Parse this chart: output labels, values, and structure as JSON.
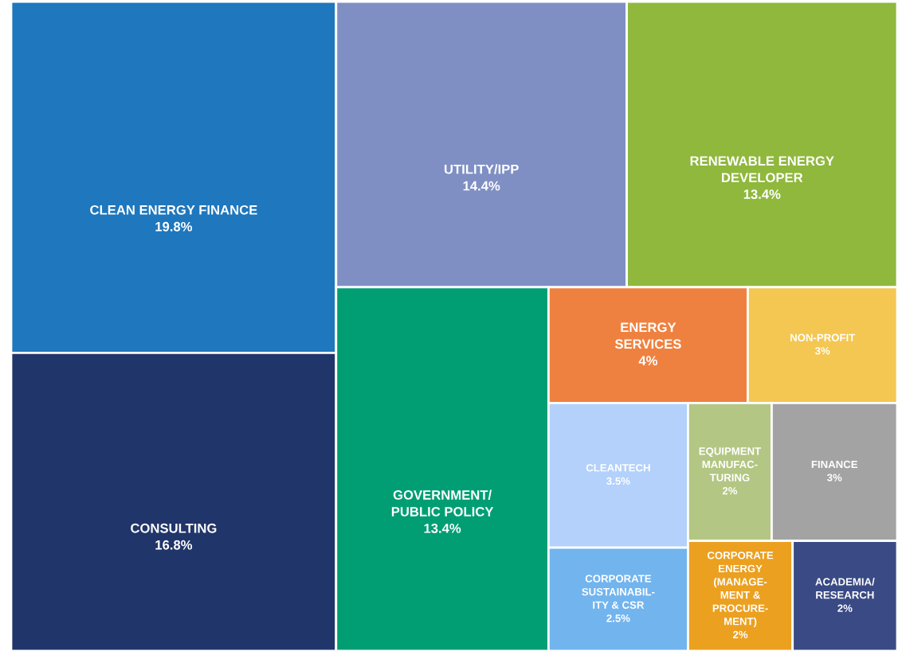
{
  "chart_data": {
    "type": "other",
    "categories": [
      "CLEAN ENERGY FINANCE",
      "CONSULTING",
      "UTILITY/IPP",
      "RENEWABLE ENERGY\nDEVELOPER",
      "GOVERNMENT/\nPUBLIC POLICY",
      "ENERGY\nSERVICES",
      "NON-PROFIT",
      "CLEANTECH",
      "CORPORATE\nSUSTAINABIL-\nITY & CSR",
      "EQUIPMENT\nMANUFAC-\nTURING",
      "FINANCE",
      "CORPORATE\nENERGY\n(MANAGE-\nMENT &\nPROCURE-\nMENT)",
      "ACADEMIA/\nRESEARCH"
    ],
    "values": [
      19.8,
      16.8,
      14.4,
      13.4,
      13.4,
      4,
      3,
      3.5,
      2.5,
      2,
      3,
      2,
      2
    ],
    "value_labels": [
      "19.8%",
      "16.8%",
      "14.4%",
      "13.4%",
      "13.4%",
      "4%",
      "3%",
      "3.5%",
      "2.5%",
      "2%",
      "3%",
      "2%",
      "2%"
    ],
    "colors": [
      "#1f77bd",
      "#203569",
      "#7f8fc4",
      "#8fb83d",
      "#019e74",
      "#ef8140",
      "#f4c752",
      "#b3d1fb",
      "#72b4ee",
      "#b3c683",
      "#a3a3a3",
      "#eba020",
      "#3a4a85"
    ]
  }
}
